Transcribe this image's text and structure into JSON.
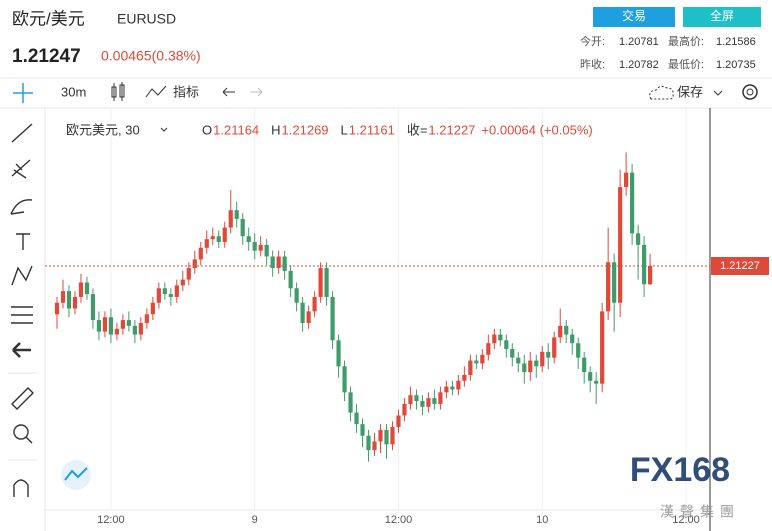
{
  "header": {
    "symbol_name": "欧元/美元",
    "symbol_code": "EURUSD",
    "price": 1.21247,
    "change": "0.00465(0.38%)",
    "buttons": [
      "交易",
      "全屏"
    ],
    "stats": [
      {
        "label": "今开:",
        "value": 1.20781
      },
      {
        "label": "最高价:",
        "value": 1.21586
      },
      {
        "label": "昨收:",
        "value": 1.20782
      },
      {
        "label": "最低价:",
        "value": 1.20735
      }
    ]
  },
  "toolbar": {
    "interval": "30m",
    "indicators": "指标",
    "save": "保存"
  },
  "watermark": {
    "brand": "FX168",
    "group": "漢聲集團"
  },
  "chart_data": {
    "type": "candlestick",
    "title": "欧元美元, 30",
    "ohlc_labels": [
      "O",
      "H",
      "L",
      "收="
    ],
    "last_change": "+0.00064 (+0.05%)",
    "up_color": "#e0493a",
    "down_color": "#3f9c6a",
    "open": [
      1.2106,
      1.211,
      1.2114,
      1.2108,
      1.2112,
      1.2117,
      1.2113,
      1.2104,
      1.21,
      1.2105,
      1.2099,
      1.2101,
      1.2104,
      1.2102,
      1.2099,
      1.2103,
      1.2106,
      1.211,
      1.2115,
      1.2113,
      1.2112,
      1.2116,
      1.2118,
      1.2122,
      1.2125,
      1.2129,
      1.2132,
      1.2133,
      1.2131,
      1.2136,
      1.2142,
      1.2139,
      1.2133,
      1.2131,
      1.2128,
      1.213,
      1.2126,
      1.2122,
      1.2126,
      1.2121,
      1.2115,
      1.211,
      1.2103,
      1.2107,
      1.2112,
      1.2122,
      1.2112,
      1.2097,
      1.2088,
      1.2079,
      1.2072,
      1.2068,
      1.2064,
      1.2059,
      1.2062,
      1.2066,
      1.2061,
      1.2067,
      1.2071,
      1.2075,
      1.2078,
      1.2076,
      1.2074,
      1.2077,
      1.2075,
      1.2079,
      1.2081,
      1.208,
      1.2083,
      1.2085,
      1.209,
      1.2089,
      1.2092,
      1.2096,
      1.2099,
      1.2097,
      1.2094,
      1.2091,
      1.2089,
      1.2086,
      1.209,
      1.2088,
      1.2093,
      1.2091,
      1.2098,
      1.2102,
      1.2099,
      1.2096,
      1.2091,
      1.2086,
      1.2083,
      1.2082,
      1.2107,
      1.2124,
      1.211,
      1.215,
      1.2155,
      1.2134,
      1.213,
      1.21164
    ],
    "high": [
      1.2112,
      1.2118,
      1.2116,
      1.2114,
      1.212,
      1.2119,
      1.2115,
      1.2107,
      1.2107,
      1.2108,
      1.2103,
      1.2106,
      1.2107,
      1.2104,
      1.2105,
      1.2108,
      1.2112,
      1.2117,
      1.2117,
      1.2115,
      1.2118,
      1.2121,
      1.2124,
      1.2128,
      1.2131,
      1.2135,
      1.2136,
      1.2135,
      1.2138,
      1.2149,
      1.2145,
      1.2141,
      1.2136,
      1.2134,
      1.2133,
      1.2132,
      1.2128,
      1.2128,
      1.2128,
      1.2123,
      1.2117,
      1.2112,
      1.2109,
      1.2114,
      1.2124,
      1.2124,
      1.2114,
      1.2099,
      1.209,
      1.2081,
      1.2075,
      1.207,
      1.2066,
      1.2065,
      1.2068,
      1.2068,
      1.2069,
      1.2073,
      1.2077,
      1.2081,
      1.208,
      1.2078,
      1.2079,
      1.208,
      1.2081,
      1.2083,
      1.2083,
      1.2085,
      1.2088,
      1.2092,
      1.2092,
      1.2094,
      1.2099,
      1.2101,
      1.2101,
      1.2099,
      1.2096,
      1.2093,
      1.2092,
      1.2093,
      1.2092,
      1.2095,
      1.2096,
      1.21,
      1.2108,
      1.2104,
      1.2101,
      1.2098,
      1.2093,
      1.2088,
      1.2086,
      1.211,
      1.2136,
      1.2127,
      1.2156,
      1.2162,
      1.2158,
      1.2137,
      1.2133,
      1.21269
    ],
    "low": [
      1.2101,
      1.2108,
      1.2105,
      1.2106,
      1.211,
      1.2111,
      1.2101,
      1.2097,
      1.2098,
      1.2096,
      1.2097,
      1.2099,
      1.21,
      1.2096,
      1.2097,
      1.2101,
      1.2104,
      1.2108,
      1.2111,
      1.2109,
      1.211,
      1.2114,
      1.2116,
      1.212,
      1.2123,
      1.2127,
      1.213,
      1.2129,
      1.2129,
      1.2134,
      1.2136,
      1.213,
      1.2128,
      1.2125,
      1.2126,
      1.2123,
      1.2119,
      1.212,
      1.2118,
      1.2112,
      1.2107,
      1.21,
      1.2101,
      1.2105,
      1.211,
      1.2109,
      1.2094,
      1.2084,
      1.2076,
      1.2069,
      1.2065,
      1.206,
      1.2055,
      1.2057,
      1.2058,
      1.2056,
      1.2059,
      1.2065,
      1.2069,
      1.2073,
      1.2073,
      1.2071,
      1.2072,
      1.2073,
      1.2073,
      1.2077,
      1.2078,
      1.2078,
      1.2081,
      1.2083,
      1.2087,
      1.2087,
      1.209,
      1.2094,
      1.2095,
      1.2091,
      1.2088,
      1.2086,
      1.2082,
      1.2083,
      1.2084,
      1.2086,
      1.2087,
      1.2089,
      1.2096,
      1.2096,
      1.2092,
      1.2087,
      1.2082,
      1.2079,
      1.2075,
      1.2079,
      1.2104,
      1.21,
      1.2105,
      1.2147,
      1.213,
      1.2118,
      1.2112,
      1.21161
    ],
    "close": [
      1.211,
      1.2114,
      1.2108,
      1.2112,
      1.2117,
      1.2113,
      1.2104,
      1.21,
      1.2105,
      1.2099,
      1.2101,
      1.2104,
      1.2102,
      1.2099,
      1.2103,
      1.2106,
      1.211,
      1.2115,
      1.2113,
      1.2112,
      1.2116,
      1.2118,
      1.2122,
      1.2125,
      1.2129,
      1.2132,
      1.2133,
      1.2131,
      1.2136,
      1.2142,
      1.2139,
      1.2133,
      1.2131,
      1.2128,
      1.213,
      1.2126,
      1.2122,
      1.2126,
      1.2121,
      1.2115,
      1.211,
      1.2103,
      1.2107,
      1.2112,
      1.2122,
      1.2112,
      1.2097,
      1.2088,
      1.2079,
      1.2072,
      1.2068,
      1.2064,
      1.2059,
      1.2062,
      1.2066,
      1.2061,
      1.2067,
      1.2071,
      1.2075,
      1.2078,
      1.2076,
      1.2074,
      1.2077,
      1.2075,
      1.2079,
      1.2081,
      1.208,
      1.2083,
      1.2085,
      1.209,
      1.2089,
      1.2092,
      1.2096,
      1.2099,
      1.2097,
      1.2094,
      1.2091,
      1.2089,
      1.2086,
      1.209,
      1.2088,
      1.2093,
      1.2091,
      1.2098,
      1.2102,
      1.2099,
      1.2096,
      1.2091,
      1.2086,
      1.2083,
      1.2082,
      1.2107,
      1.2124,
      1.211,
      1.215,
      1.2155,
      1.2134,
      1.213,
      1.21164,
      1.21227
    ],
    "xlim": [
      -1.5,
      109
    ],
    "ylim": [
      1.20383,
      1.21739
    ],
    "xticks": [
      {
        "value": 9,
        "label": "12:00"
      },
      {
        "value": 33,
        "label": "9"
      },
      {
        "value": 57,
        "label": "12:00"
      },
      {
        "value": 81,
        "label": "10"
      },
      {
        "value": 105,
        "label": "12:00"
      }
    ],
    "grid": true,
    "last_price_line": true
  }
}
